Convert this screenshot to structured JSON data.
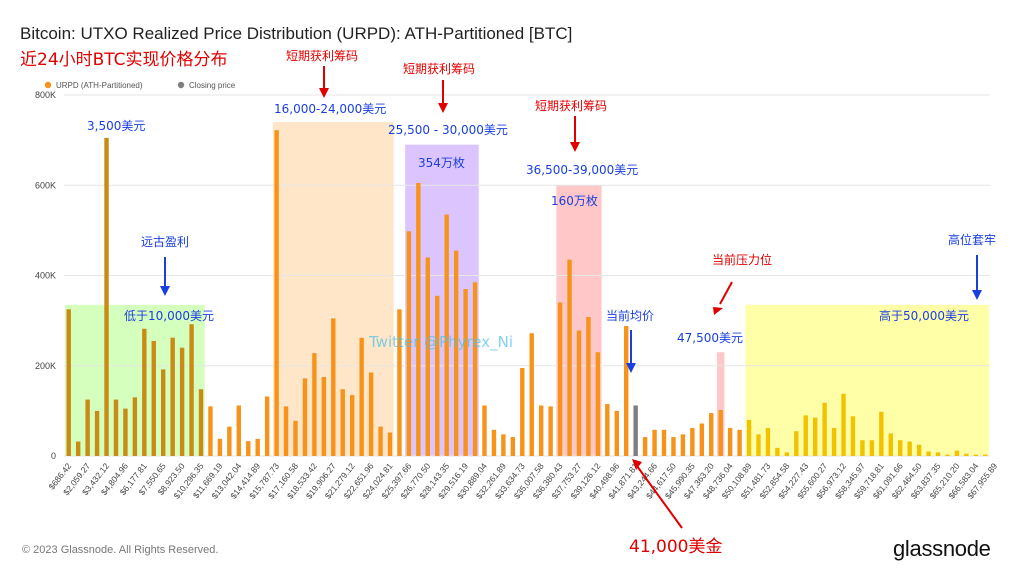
{
  "title": "Bitcoin: UTXO Realized Price Distribution (URPD): ATH-Partitioned [BTC]",
  "footer": {
    "copyright": "© 2023 Glassnode. All Rights Reserved.",
    "brand": "glassnode"
  },
  "colors": {
    "bar": "#F7931A",
    "bar_dark": "#C98A16",
    "bar_yellow": "#F2C200",
    "closing": "#7F7F7F",
    "annot_red": "#E00000",
    "annot_blue": "#1A3FE0"
  },
  "chart_data": {
    "type": "bar",
    "ylim": [
      0,
      800000
    ],
    "yticks": [
      {
        "value": 0,
        "label": "0"
      },
      {
        "value": 200000,
        "label": "200K"
      },
      {
        "value": 400000,
        "label": "400K"
      },
      {
        "value": 600000,
        "label": "600K"
      },
      {
        "value": 800000,
        "label": "800K"
      }
    ],
    "legend": [
      {
        "name": "URPD (ATH-Partitioned)",
        "color": "#F7931A"
      },
      {
        "name": "Closing price",
        "color": "#7F7F7F"
      }
    ],
    "closing_price_index": 60,
    "values": [
      325000,
      32000,
      125000,
      100000,
      705000,
      125000,
      105000,
      130000,
      282000,
      255000,
      192000,
      262000,
      240000,
      292000,
      148000,
      110000,
      38000,
      65000,
      112000,
      33000,
      38000,
      132000,
      722000,
      110000,
      78000,
      172000,
      228000,
      175000,
      305000,
      148000,
      135000,
      262000,
      185000,
      65000,
      52000,
      325000,
      498000,
      605000,
      440000,
      355000,
      535000,
      455000,
      370000,
      385000,
      112000,
      58000,
      48000,
      42000,
      195000,
      272000,
      112000,
      110000,
      340000,
      435000,
      278000,
      308000,
      230000,
      115000,
      100000,
      288000,
      112000,
      42000,
      58000,
      58000,
      42000,
      48000,
      62000,
      72000,
      95000,
      102000,
      62000,
      58000,
      80000,
      48000,
      62000,
      18000,
      8000,
      55000,
      90000,
      85000,
      118000,
      62000,
      138000,
      88000,
      35000,
      35000,
      98000,
      50000,
      35000,
      32000,
      25000,
      10000,
      8000,
      3000,
      12000,
      5000,
      3000,
      3000
    ],
    "tick_labels": [
      "$686.42",
      "$2,059.27",
      "$3,432.12",
      "$4,804.96",
      "$6,177.81",
      "$7,550.65",
      "$8,923.50",
      "$10,296.35",
      "$11,669.19",
      "$13,042.04",
      "$14,414.89",
      "$15,787.73",
      "$17,160.58",
      "$18,533.42",
      "$19,906.27",
      "$21,279.12",
      "$22,651.96",
      "$24,024.81",
      "$25,397.66",
      "$26,770.50",
      "$28,143.35",
      "$29,516.19",
      "$30,889.04",
      "$32,261.89",
      "$33,634.73",
      "$35,007.58",
      "$36,380.43",
      "$37,753.27",
      "$39,126.12",
      "$40,498.96",
      "$41,871.81",
      "$43,244.66",
      "$44,617.50",
      "$45,990.35",
      "$47,363.20",
      "$48,736.04",
      "$50,108.89",
      "$51,481.73",
      "$52,854.58",
      "$54,227.43",
      "$55,600.27",
      "$56,973.12",
      "$58,345.97",
      "$59,718.81",
      "$61,091.66",
      "$62,464.50",
      "$63,837.35",
      "$65,210.20",
      "$66,583.04",
      "$67,955.89"
    ],
    "bands": [
      {
        "name": "green-band",
        "from": 0,
        "to": 14,
        "top": 335000,
        "color": "#CCFFB0"
      },
      {
        "name": "peach-band",
        "from": 22,
        "to": 34,
        "top": 740000,
        "color": "#FFE2BF"
      },
      {
        "name": "purple-band",
        "from": 36,
        "to": 43,
        "top": 690000,
        "color": "#D6BBFF"
      },
      {
        "name": "pink-band-main",
        "from": 52,
        "to": 56,
        "top": 600000,
        "color": "#FFBDBD"
      },
      {
        "name": "pink-band-small",
        "from": 69,
        "to": 69,
        "top": 230000,
        "color": "#FFBDBD"
      },
      {
        "name": "yellow-band",
        "from": 72,
        "to": 97,
        "top": 335000,
        "color": "#FFFF99"
      }
    ]
  },
  "annotations": {
    "main_cn": "近24小时BTC实现价格分布",
    "short_term_1": "短期获利筹码",
    "short_term_2": "短期获利筹码",
    "short_term_3": "短期获利筹码",
    "range_3500": "3,500美元",
    "range_16k_24k": "16,000-24,000美元",
    "range_25k_30k": "25,500 - 30,000美元",
    "amount_354": "354万枚",
    "range_36k_39k": "36,500-39,000美元",
    "amount_160": "160万枚",
    "ancient_profit": "远古盈利",
    "below_10k": "低于10,000美元",
    "above_50k": "高于50,000美元",
    "high_trapped": "高位套牢",
    "current_pressure": "当前压力位",
    "current_avg": "当前均价",
    "price_47500": "47,500美元",
    "price_41000": "41,000美金",
    "watermark": "Twitter @Phyrex_Ni"
  }
}
